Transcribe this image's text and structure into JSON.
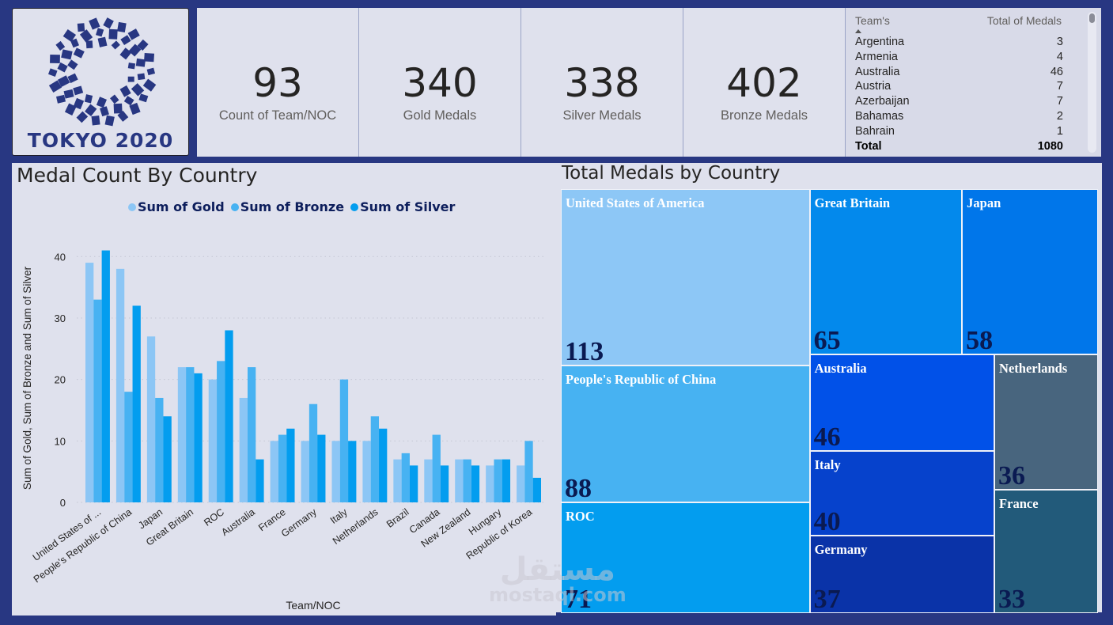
{
  "logo": {
    "text": "TOKYO 2020",
    "icon": "tokyo-2020-emblem"
  },
  "kpis": [
    {
      "value": "93",
      "label": "Count of Team/NOC"
    },
    {
      "value": "340",
      "label": "Gold Medals"
    },
    {
      "value": "338",
      "label": "Silver Medals"
    },
    {
      "value": "402",
      "label": "Bronze Medals"
    }
  ],
  "medal_table": {
    "col_team": "Team's",
    "col_total": "Total of Medals",
    "sort": "ascending",
    "rows": [
      {
        "team": "Argentina",
        "total": "3"
      },
      {
        "team": "Armenia",
        "total": "4"
      },
      {
        "team": "Australia",
        "total": "46"
      },
      {
        "team": "Austria",
        "total": "7"
      },
      {
        "team": "Azerbaijan",
        "total": "7"
      },
      {
        "team": "Bahamas",
        "total": "2"
      },
      {
        "team": "Bahrain",
        "total": "1"
      }
    ],
    "total_label": "Total",
    "total_value": "1080"
  },
  "chart_data": [
    {
      "type": "bar",
      "title": "Medal Count By Country",
      "xlabel": "Team/NOC",
      "ylabel": "Sum of Gold, Sum of Bronze and Sum of Silver",
      "ylim": [
        0,
        43
      ],
      "yticks": [
        0,
        10,
        20,
        30,
        40
      ],
      "grid": true,
      "legend_position": "top-center",
      "categories": [
        "United States of ...",
        "People's Republic of China",
        "Japan",
        "Great Britain",
        "ROC",
        "Australia",
        "France",
        "Germany",
        "Italy",
        "Netherlands",
        "Brazil",
        "Canada",
        "New Zealand",
        "Hungary",
        "Republic of Korea"
      ],
      "series": [
        {
          "name": "Sum of Gold",
          "color": "#8cc6f5",
          "values": [
            39,
            38,
            27,
            22,
            20,
            17,
            10,
            10,
            10,
            10,
            7,
            7,
            7,
            6,
            6
          ]
        },
        {
          "name": "Sum of Bronze",
          "color": "#47b2f2",
          "values": [
            33,
            18,
            17,
            22,
            23,
            22,
            11,
            16,
            20,
            14,
            8,
            11,
            7,
            7,
            10
          ]
        },
        {
          "name": "Sum of Silver",
          "color": "#039def",
          "values": [
            41,
            32,
            14,
            21,
            28,
            7,
            12,
            11,
            10,
            12,
            6,
            6,
            6,
            7,
            4
          ]
        }
      ]
    },
    {
      "type": "treemap",
      "title": "Total Medals by Country",
      "items": [
        {
          "name": "United States of America",
          "value": 113,
          "color": "#8dc7f6"
        },
        {
          "name": "People's Republic of China",
          "value": 88,
          "color": "#47b2f2"
        },
        {
          "name": "ROC",
          "value": 71,
          "color": "#039def"
        },
        {
          "name": "Great Britain",
          "value": 65,
          "color": "#0389ec"
        },
        {
          "name": "Japan",
          "value": 58,
          "color": "#0076ea"
        },
        {
          "name": "Australia",
          "value": 46,
          "color": "#0151e8"
        },
        {
          "name": "Italy",
          "value": 40,
          "color": "#0642cc"
        },
        {
          "name": "Germany",
          "value": 37,
          "color": "#0a33a8"
        },
        {
          "name": "Netherlands",
          "value": 36,
          "color": "#48657e"
        },
        {
          "name": "France",
          "value": 33,
          "color": "#225a7a"
        }
      ]
    }
  ],
  "watermark": {
    "arabic": "مستقل",
    "latin": "mostaql.com"
  }
}
